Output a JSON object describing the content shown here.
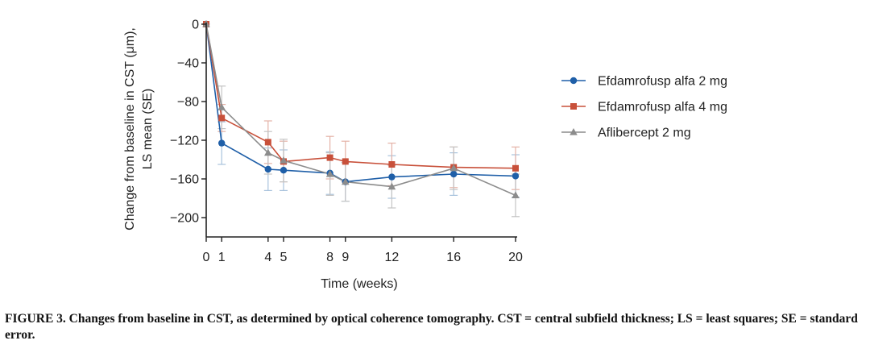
{
  "chart_data": {
    "type": "line",
    "xlabel": "Time  (weeks)",
    "ylabel_line1": "Change from baseline in CST (μm),",
    "ylabel_line2": "LS mean (SE)",
    "x_ticks": [
      0,
      1,
      4,
      5,
      8,
      9,
      12,
      16,
      20
    ],
    "y_ticks": [
      0,
      -40,
      -80,
      -120,
      -160,
      -200
    ],
    "y_tick_labels": [
      "0",
      "−40",
      "−80",
      "−120",
      "−160",
      "−200"
    ],
    "ylim": [
      -220,
      0
    ],
    "xlim": [
      0,
      20
    ],
    "grid": false,
    "legend_position": "right",
    "series": [
      {
        "name": "Efdamrofusp alfa 2 mg",
        "color": "#1f5fa8",
        "marker": "circle",
        "x": [
          0,
          1,
          4,
          5,
          8,
          9,
          12,
          16,
          20
        ],
        "y": [
          0,
          -123,
          -150,
          -151,
          -154,
          -163,
          -158,
          -155,
          -157
        ],
        "err": [
          0,
          22,
          22,
          21,
          22,
          20,
          22,
          22,
          22
        ]
      },
      {
        "name": "Efdamrofusp alfa 4 mg",
        "color": "#c8503a",
        "marker": "square",
        "x": [
          0,
          1,
          4,
          5,
          8,
          9,
          12,
          16,
          20
        ],
        "y": [
          0,
          -97,
          -122,
          -142,
          -138,
          -142,
          -145,
          -148,
          -149
        ],
        "err": [
          0,
          14,
          22,
          21,
          22,
          21,
          22,
          21,
          22
        ]
      },
      {
        "name": "Aflibercept 2 mg",
        "color": "#8c8c8c",
        "marker": "triangle",
        "x": [
          0,
          1,
          4,
          5,
          8,
          9,
          12,
          16,
          20
        ],
        "y": [
          0,
          -86,
          -133,
          -141,
          -155,
          -163,
          -168,
          -149,
          -177
        ],
        "err": [
          0,
          22,
          22,
          22,
          22,
          20,
          22,
          22,
          22
        ]
      }
    ]
  },
  "caption": "FIGURE 3. Changes from baseline in CST, as determined by optical coherence tomography. CST = central subfield thickness; LS = least squares; SE = standard error."
}
